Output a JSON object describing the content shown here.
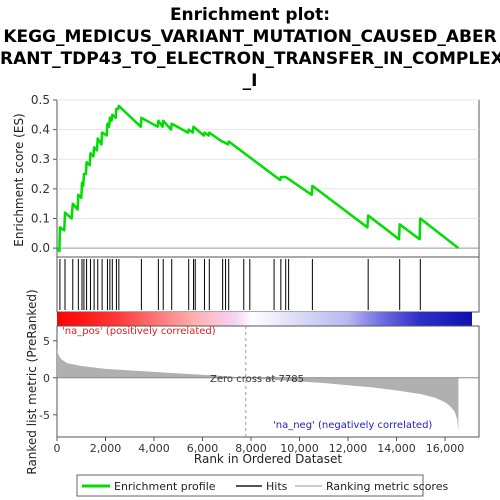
{
  "title_lines": [
    "Enrichment plot:",
    "KEGG_MEDICUS_VARIANT_MUTATION_CAUSED_ABER",
    "RANT_TDP43_TO_ELECTRON_TRANSFER_IN_COMPLEX",
    "_I"
  ],
  "colors": {
    "es_line": "#00dd00",
    "hits": "#000000",
    "metric_fill": "#b0b0b0",
    "pos_label": "#e02020",
    "neg_label": "#2020c0",
    "zero_line": "#999999"
  },
  "chart_data": {
    "type": "line",
    "xlabel": "Rank in Ordered Dataset",
    "xlim": [
      0,
      17400
    ],
    "x_ticks": [
      "0",
      "2,000",
      "4,000",
      "6,000",
      "8,000",
      "10,000",
      "12,000",
      "14,000",
      "16,000"
    ],
    "x_tick_values": [
      0,
      2000,
      4000,
      6000,
      8000,
      10000,
      12000,
      14000,
      16000
    ],
    "es_panel": {
      "ylabel": "Enrichment score (ES)",
      "ylim": [
        -0.03,
        0.5
      ],
      "y_ticks": [
        "0.0",
        "0.1",
        "0.2",
        "0.3",
        "0.4",
        "0.5"
      ],
      "y_tick_values": [
        0,
        0.1,
        0.2,
        0.3,
        0.4,
        0.5
      ],
      "series": [
        {
          "name": "Enrichment profile",
          "x": [
            0,
            100,
            120,
            300,
            330,
            600,
            650,
            850,
            880,
            1000,
            1030,
            1080,
            1110,
            1190,
            1220,
            1350,
            1380,
            1500,
            1530,
            1650,
            1680,
            1830,
            1860,
            2050,
            2080,
            2150,
            2180,
            2250,
            2280,
            2420,
            2450,
            2520,
            2550,
            3450,
            3480,
            4150,
            4180,
            4350,
            4380,
            4700,
            4730,
            5400,
            5430,
            5600,
            5630,
            6050,
            6080,
            6250,
            6280,
            6800,
            6830,
            7050,
            7080,
            9200,
            9230,
            9400,
            9430,
            10500,
            10530,
            12800,
            12830,
            14100,
            14130,
            14950,
            14980,
            16550
          ],
          "y": [
            0.0,
            -0.01,
            0.07,
            0.06,
            0.12,
            0.1,
            0.15,
            0.13,
            0.18,
            0.17,
            0.22,
            0.21,
            0.25,
            0.25,
            0.29,
            0.28,
            0.32,
            0.31,
            0.34,
            0.33,
            0.37,
            0.35,
            0.39,
            0.38,
            0.42,
            0.41,
            0.44,
            0.43,
            0.45,
            0.44,
            0.47,
            0.47,
            0.48,
            0.41,
            0.44,
            0.41,
            0.43,
            0.41,
            0.43,
            0.4,
            0.42,
            0.39,
            0.4,
            0.39,
            0.41,
            0.38,
            0.39,
            0.38,
            0.39,
            0.36,
            0.36,
            0.35,
            0.36,
            0.23,
            0.24,
            0.24,
            0.24,
            0.18,
            0.21,
            0.07,
            0.11,
            0.03,
            0.08,
            0.03,
            0.1,
            0.0
          ]
        }
      ]
    },
    "hits": [
      120,
      330,
      650,
      880,
      1030,
      1110,
      1220,
      1380,
      1530,
      1680,
      1860,
      2080,
      2180,
      2280,
      2450,
      2550,
      3480,
      4180,
      4380,
      4730,
      5430,
      5630,
      5700,
      6080,
      6280,
      6830,
      6950,
      7080,
      7700,
      7950,
      8950,
      9230,
      9430,
      9550,
      10530,
      12830,
      14130,
      14980
    ],
    "metric_panel": {
      "ylabel": "Ranked list metric (PreRanked)",
      "ylim": [
        -8,
        7
      ],
      "y_ticks": [
        "5",
        "0",
        "-5"
      ],
      "y_tick_values": [
        5,
        0,
        -5
      ],
      "zero_cross": 7785,
      "x": [
        0,
        50,
        150,
        400,
        1000,
        2000,
        3000,
        4000,
        5000,
        6000,
        7000,
        7785,
        9000,
        10000,
        11000,
        12000,
        13000,
        14000,
        15000,
        15600,
        16000,
        16200,
        16400,
        16500,
        16550
      ],
      "y": [
        4.0,
        3.2,
        2.6,
        2.0,
        1.6,
        1.2,
        1.0,
        0.8,
        0.6,
        0.4,
        0.2,
        0.0,
        -0.3,
        -0.5,
        -0.7,
        -1.0,
        -1.3,
        -1.7,
        -2.2,
        -2.7,
        -3.3,
        -3.8,
        -4.6,
        -5.6,
        -7.2
      ]
    },
    "annotations": {
      "zero_cross": "Zero cross at 7785",
      "pos": "'na_pos' (positively correlated)",
      "neg": "'na_neg' (negatively correlated)"
    },
    "legend": {
      "position": "bottom",
      "items": [
        "Enrichment profile",
        "Hits",
        "Ranking metric scores"
      ]
    }
  }
}
